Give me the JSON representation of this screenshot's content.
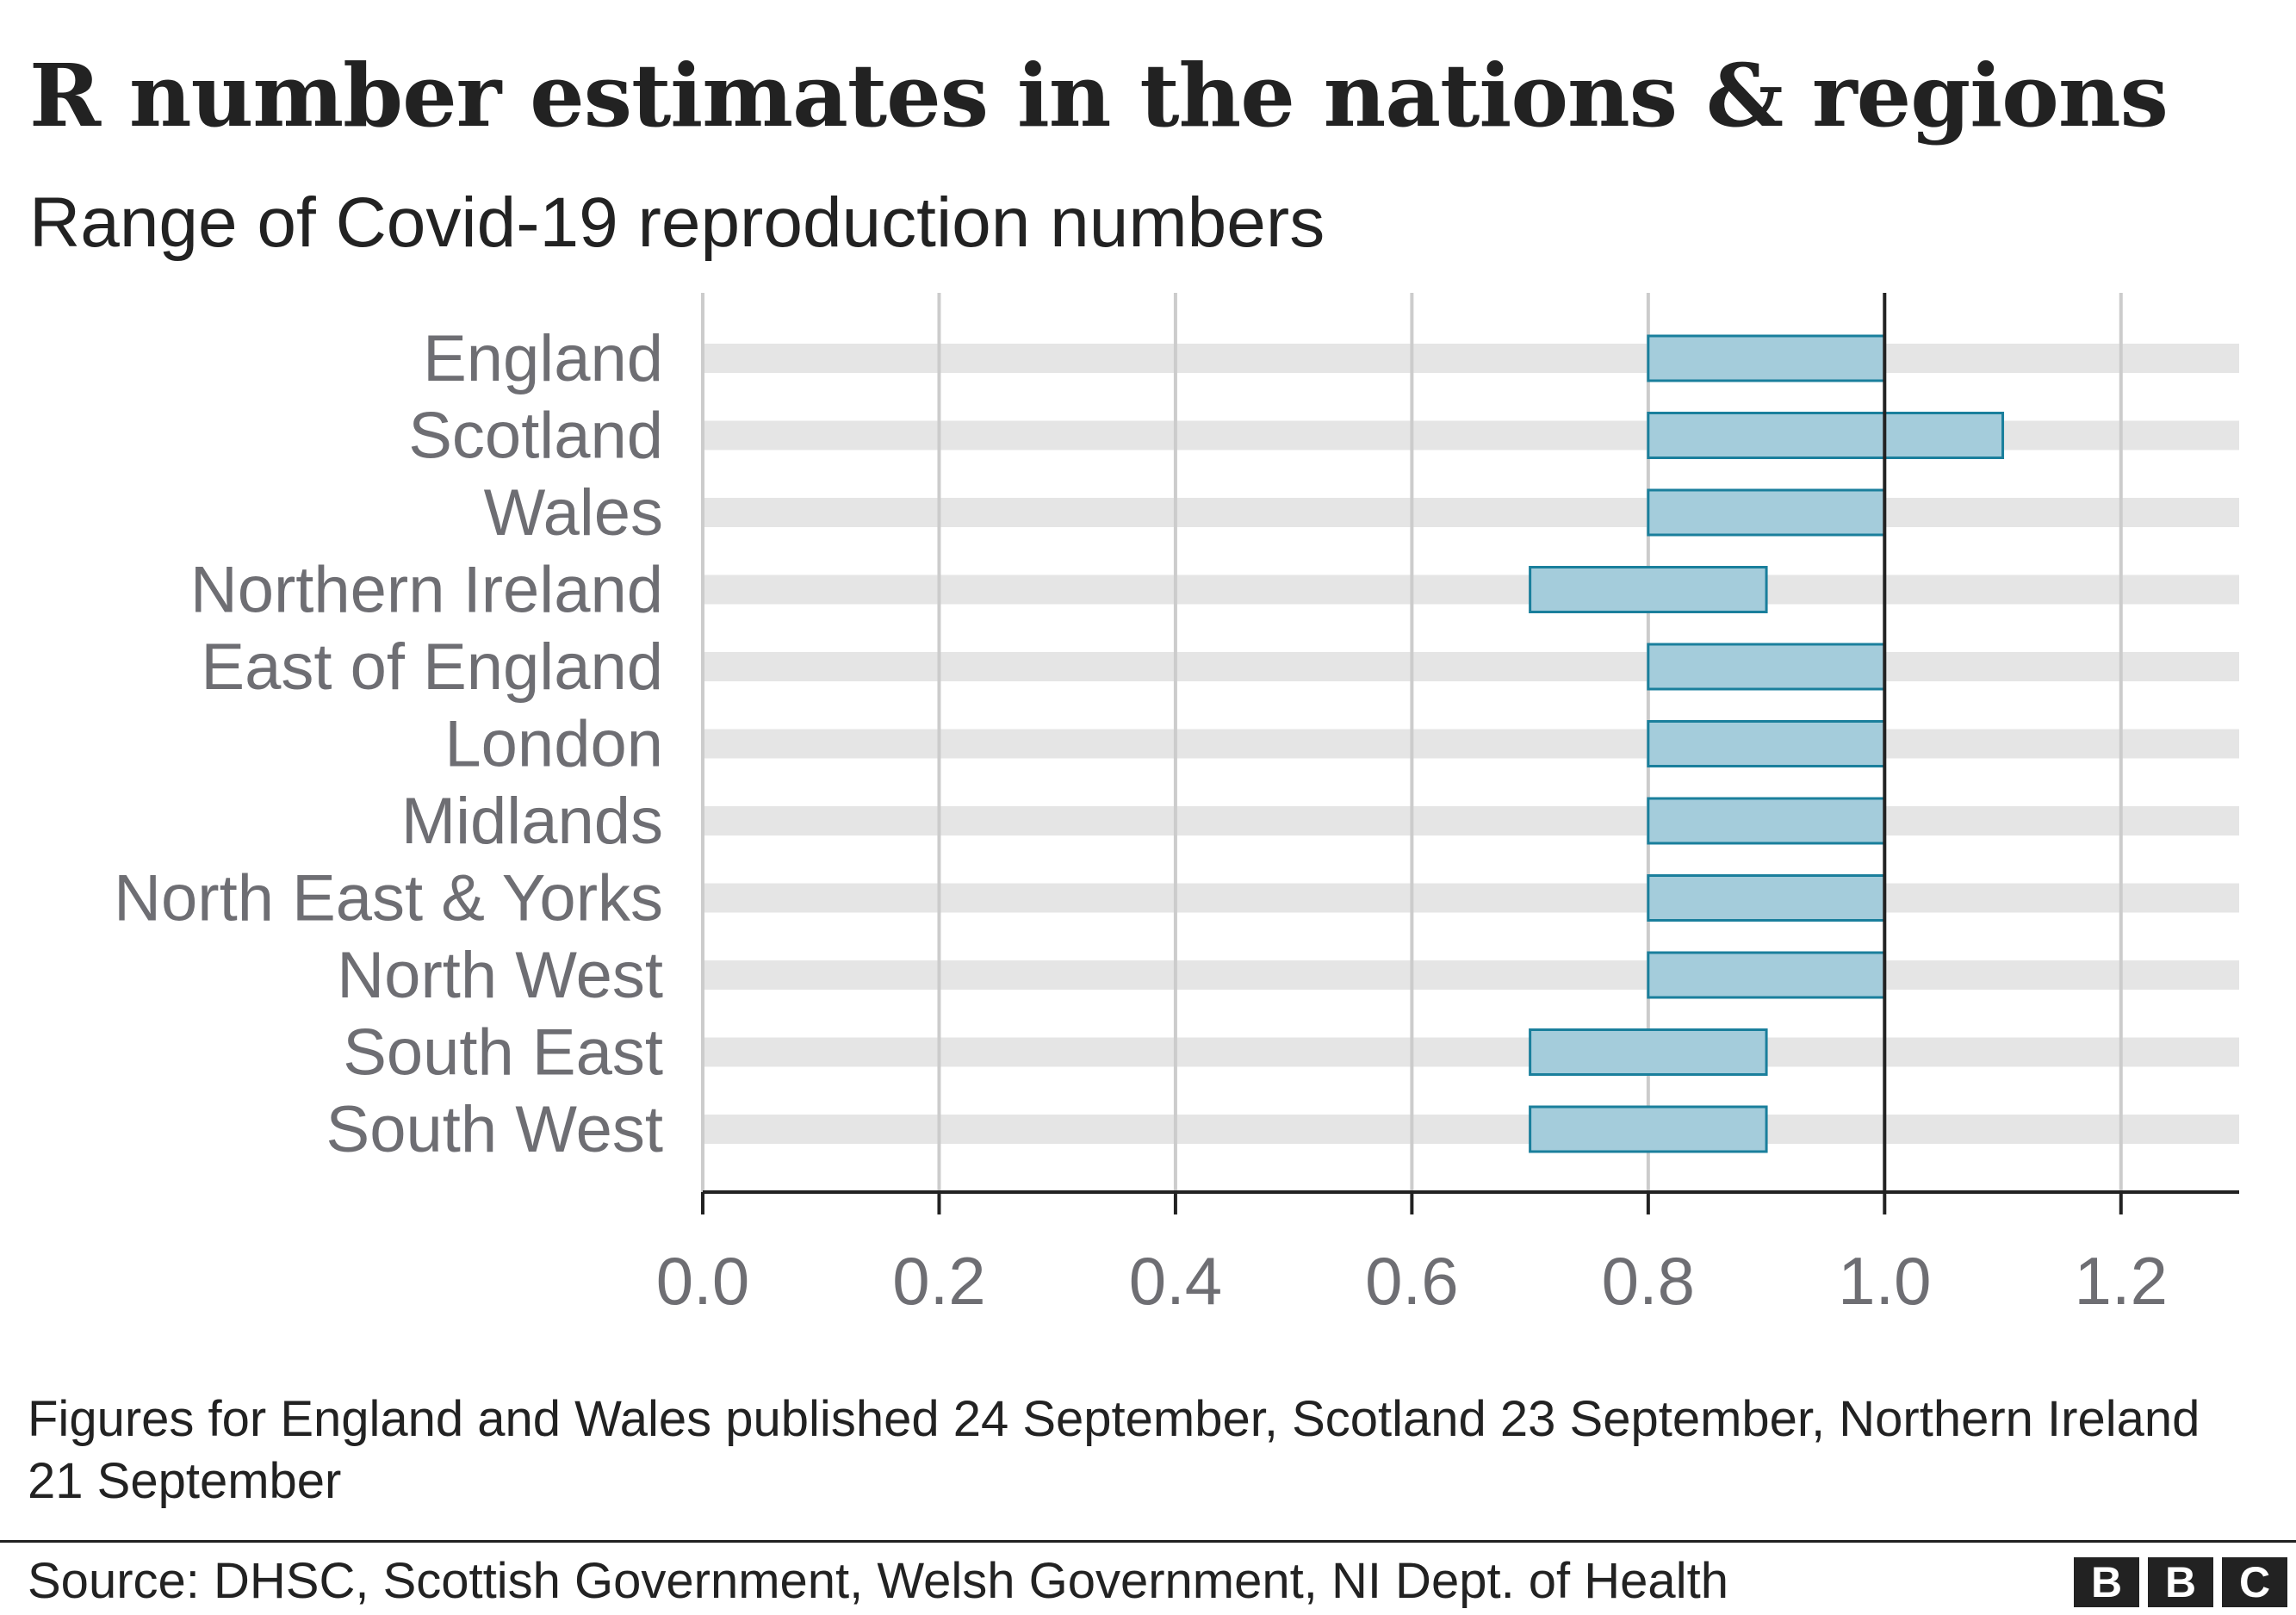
{
  "chart_data": {
    "type": "bar",
    "orientation": "horizontal",
    "bar_style": "range",
    "title": "R number estimates in the nations & regions",
    "subtitle": "Range of Covid-19 reproduction numbers",
    "categories": [
      "England",
      "Scotland",
      "Wales",
      "Northern Ireland",
      "East of England",
      "London",
      "Midlands",
      "North East & Yorks",
      "North West",
      "South East",
      "South West"
    ],
    "ranges": [
      [
        0.8,
        1.0
      ],
      [
        0.8,
        1.1
      ],
      [
        0.8,
        1.0
      ],
      [
        0.7,
        0.9
      ],
      [
        0.8,
        1.0
      ],
      [
        0.8,
        1.0
      ],
      [
        0.8,
        1.0
      ],
      [
        0.8,
        1.0
      ],
      [
        0.8,
        1.0
      ],
      [
        0.7,
        0.9
      ],
      [
        0.7,
        0.9
      ]
    ],
    "xlim": [
      0,
      1.3
    ],
    "xticks": [
      0.0,
      0.2,
      0.4,
      0.6,
      0.8,
      1.0,
      1.2
    ],
    "xtick_labels": [
      "0.0",
      "0.2",
      "0.4",
      "0.6",
      "0.8",
      "1.0",
      "1.2"
    ],
    "reference_line": 1.0,
    "grid": true,
    "colors": {
      "bar_fill": "#a4ccdb",
      "bar_stroke": "#1a7f9c",
      "row_band": "#e5e5e5",
      "gridline": "#cccccc",
      "axis": "#222222",
      "label": "#6e6e73"
    }
  },
  "footnote": "Figures for England and Wales published 24 September, Scotland 23 September, Northern Ireland 21 September",
  "source": "Source: DHSC, Scottish Government, Welsh Government, NI Dept. of Health",
  "logo": [
    "B",
    "B",
    "C"
  ]
}
